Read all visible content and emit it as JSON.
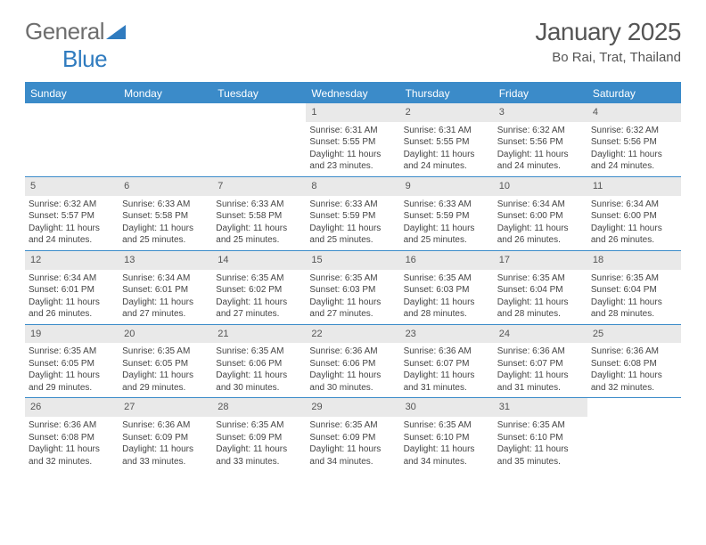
{
  "logo": {
    "word1": "General",
    "word2": "Blue",
    "triangle_color": "#2f7bbf"
  },
  "title": "January 2025",
  "location": "Bo Rai, Trat, Thailand",
  "colors": {
    "header_bar": "#3b8bc9",
    "daynum_bg": "#e9e9e9",
    "text": "#555555",
    "cell_text": "#444444",
    "rule": "#3b8bc9"
  },
  "weekdays": [
    "Sunday",
    "Monday",
    "Tuesday",
    "Wednesday",
    "Thursday",
    "Friday",
    "Saturday"
  ],
  "blank_leading": 3,
  "days": [
    {
      "n": "1",
      "sunrise": "6:31 AM",
      "sunset": "5:55 PM",
      "daylight": "11 hours and 23 minutes."
    },
    {
      "n": "2",
      "sunrise": "6:31 AM",
      "sunset": "5:55 PM",
      "daylight": "11 hours and 24 minutes."
    },
    {
      "n": "3",
      "sunrise": "6:32 AM",
      "sunset": "5:56 PM",
      "daylight": "11 hours and 24 minutes."
    },
    {
      "n": "4",
      "sunrise": "6:32 AM",
      "sunset": "5:56 PM",
      "daylight": "11 hours and 24 minutes."
    },
    {
      "n": "5",
      "sunrise": "6:32 AM",
      "sunset": "5:57 PM",
      "daylight": "11 hours and 24 minutes."
    },
    {
      "n": "6",
      "sunrise": "6:33 AM",
      "sunset": "5:58 PM",
      "daylight": "11 hours and 25 minutes."
    },
    {
      "n": "7",
      "sunrise": "6:33 AM",
      "sunset": "5:58 PM",
      "daylight": "11 hours and 25 minutes."
    },
    {
      "n": "8",
      "sunrise": "6:33 AM",
      "sunset": "5:59 PM",
      "daylight": "11 hours and 25 minutes."
    },
    {
      "n": "9",
      "sunrise": "6:33 AM",
      "sunset": "5:59 PM",
      "daylight": "11 hours and 25 minutes."
    },
    {
      "n": "10",
      "sunrise": "6:34 AM",
      "sunset": "6:00 PM",
      "daylight": "11 hours and 26 minutes."
    },
    {
      "n": "11",
      "sunrise": "6:34 AM",
      "sunset": "6:00 PM",
      "daylight": "11 hours and 26 minutes."
    },
    {
      "n": "12",
      "sunrise": "6:34 AM",
      "sunset": "6:01 PM",
      "daylight": "11 hours and 26 minutes."
    },
    {
      "n": "13",
      "sunrise": "6:34 AM",
      "sunset": "6:01 PM",
      "daylight": "11 hours and 27 minutes."
    },
    {
      "n": "14",
      "sunrise": "6:35 AM",
      "sunset": "6:02 PM",
      "daylight": "11 hours and 27 minutes."
    },
    {
      "n": "15",
      "sunrise": "6:35 AM",
      "sunset": "6:03 PM",
      "daylight": "11 hours and 27 minutes."
    },
    {
      "n": "16",
      "sunrise": "6:35 AM",
      "sunset": "6:03 PM",
      "daylight": "11 hours and 28 minutes."
    },
    {
      "n": "17",
      "sunrise": "6:35 AM",
      "sunset": "6:04 PM",
      "daylight": "11 hours and 28 minutes."
    },
    {
      "n": "18",
      "sunrise": "6:35 AM",
      "sunset": "6:04 PM",
      "daylight": "11 hours and 28 minutes."
    },
    {
      "n": "19",
      "sunrise": "6:35 AM",
      "sunset": "6:05 PM",
      "daylight": "11 hours and 29 minutes."
    },
    {
      "n": "20",
      "sunrise": "6:35 AM",
      "sunset": "6:05 PM",
      "daylight": "11 hours and 29 minutes."
    },
    {
      "n": "21",
      "sunrise": "6:35 AM",
      "sunset": "6:06 PM",
      "daylight": "11 hours and 30 minutes."
    },
    {
      "n": "22",
      "sunrise": "6:36 AM",
      "sunset": "6:06 PM",
      "daylight": "11 hours and 30 minutes."
    },
    {
      "n": "23",
      "sunrise": "6:36 AM",
      "sunset": "6:07 PM",
      "daylight": "11 hours and 31 minutes."
    },
    {
      "n": "24",
      "sunrise": "6:36 AM",
      "sunset": "6:07 PM",
      "daylight": "11 hours and 31 minutes."
    },
    {
      "n": "25",
      "sunrise": "6:36 AM",
      "sunset": "6:08 PM",
      "daylight": "11 hours and 32 minutes."
    },
    {
      "n": "26",
      "sunrise": "6:36 AM",
      "sunset": "6:08 PM",
      "daylight": "11 hours and 32 minutes."
    },
    {
      "n": "27",
      "sunrise": "6:36 AM",
      "sunset": "6:09 PM",
      "daylight": "11 hours and 33 minutes."
    },
    {
      "n": "28",
      "sunrise": "6:35 AM",
      "sunset": "6:09 PM",
      "daylight": "11 hours and 33 minutes."
    },
    {
      "n": "29",
      "sunrise": "6:35 AM",
      "sunset": "6:09 PM",
      "daylight": "11 hours and 34 minutes."
    },
    {
      "n": "30",
      "sunrise": "6:35 AM",
      "sunset": "6:10 PM",
      "daylight": "11 hours and 34 minutes."
    },
    {
      "n": "31",
      "sunrise": "6:35 AM",
      "sunset": "6:10 PM",
      "daylight": "11 hours and 35 minutes."
    }
  ],
  "labels": {
    "sunrise": "Sunrise: ",
    "sunset": "Sunset: ",
    "daylight": "Daylight: "
  }
}
